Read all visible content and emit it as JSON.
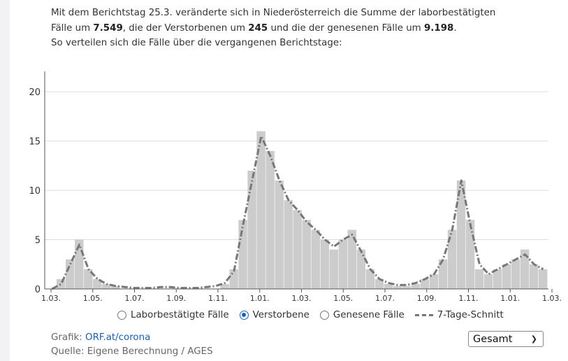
{
  "intro": {
    "line1": "Mit dem Berichtstag 25.3. veränderte sich in Niederösterreich die Summe der laborbestätigten",
    "line2_pre": "Fälle um ",
    "cases_value": "7.549",
    "line2_mid1": ", die der Verstorbenen um ",
    "deaths_value": "245",
    "line2_mid2": " und die der genesenen Fälle um ",
    "recovered_value": "9.198",
    "line2_end": ".",
    "line3": "So verteilen sich die Fälle über die vergangenen Berichtstage:"
  },
  "legend": {
    "option_cases": "Laborbestätigte Fälle",
    "option_deaths": "Verstorbene",
    "option_recovered": "Genesene Fälle",
    "avg_label": "7-Tage-Schnitt",
    "selected": "Verstorbene"
  },
  "footer": {
    "graphic_label": "Grafik: ",
    "graphic_link": "ORF.at/corona",
    "source": "Quelle: Eigene Berechnung / AGES"
  },
  "period_select": {
    "value": "Gesamt"
  },
  "colors": {
    "bars": "#cccccc",
    "highlight_bars": "#666666",
    "avg_line": "#777777",
    "grid": "#dddddd",
    "accent": "#1b63b5"
  },
  "chart_data": {
    "type": "bar",
    "title": "",
    "xlabel": "",
    "ylabel": "",
    "ylim": [
      0,
      22
    ],
    "yticks": [
      0,
      5,
      10,
      15,
      20
    ],
    "x_ticks": [
      "1.03.",
      "1.05.",
      "1.07.",
      "1.09.",
      "1.11.",
      "1.01.",
      "1.03.",
      "1.05.",
      "1.07.",
      "1.09.",
      "1.11.",
      "1.01.",
      "1.03."
    ],
    "grid": "horizontal",
    "series_shown": "Verstorbene",
    "interval_days": 14,
    "series": [
      {
        "name": "Verstorbene",
        "values": [
          0,
          1,
          3,
          5,
          2,
          1,
          0.5,
          0.3,
          0,
          0,
          0,
          0,
          0,
          0,
          0,
          0,
          0,
          0,
          0,
          0.5,
          2,
          7,
          12,
          16,
          14,
          11,
          9,
          8,
          7,
          6,
          5,
          4,
          5,
          6,
          4,
          2,
          1,
          0.5,
          0.3,
          0.3,
          0.5,
          1,
          1.5,
          3,
          6,
          11,
          7,
          2,
          1.5,
          2,
          2.5,
          3,
          4,
          2.5,
          2
        ]
      },
      {
        "name": "7-Tage-Schnitt",
        "values": [
          0,
          0.5,
          2.5,
          4.5,
          2,
          1,
          0.5,
          0.3,
          0.2,
          0.1,
          0.1,
          0.1,
          0.2,
          0.2,
          0.1,
          0.1,
          0.1,
          0.2,
          0.3,
          0.6,
          1.8,
          6.5,
          11,
          15.5,
          13.5,
          11,
          9,
          8,
          6.8,
          6,
          5,
          4.3,
          5,
          5.5,
          3.8,
          2,
          1,
          0.6,
          0.4,
          0.4,
          0.6,
          1,
          1.5,
          3,
          6,
          11,
          6.5,
          2.5,
          1.5,
          2,
          2.5,
          3,
          3.5,
          2.5,
          2
        ]
      }
    ]
  }
}
